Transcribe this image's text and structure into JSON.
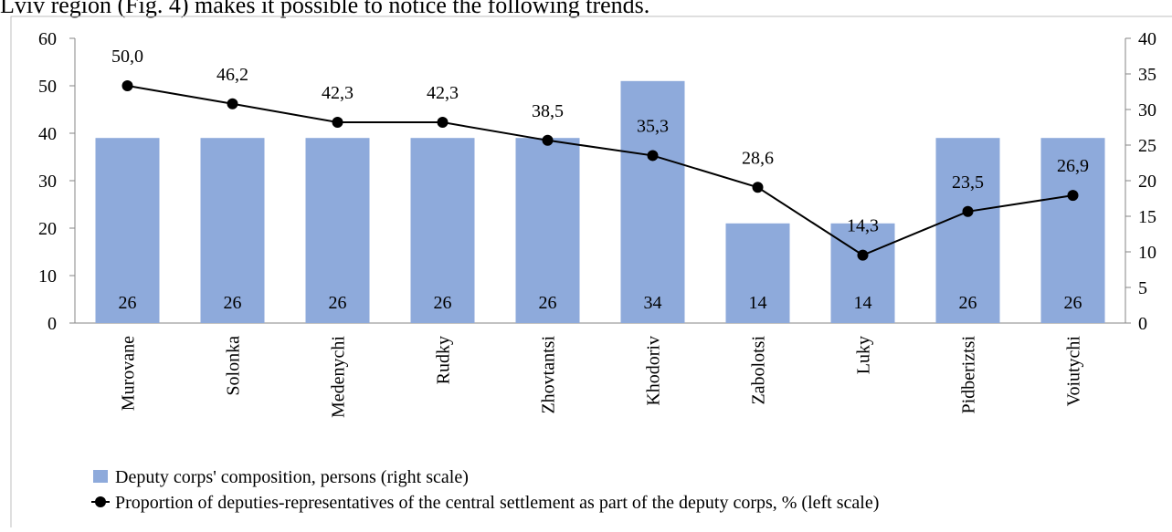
{
  "intro": "Lviv region (Fig. 4) makes it possible to notice the following trends.",
  "chart_data": {
    "type": "combo",
    "categories": [
      "Murovane",
      "Solonka",
      "Medenychi",
      "Rudky",
      "Zhovtantsi",
      "Khodoriv",
      "Zabolotsi",
      "Luky",
      "Pidberiztsi",
      "Voiutychi"
    ],
    "series": [
      {
        "name": "Deputy corps' composition, persons (right scale)",
        "type": "bar",
        "axis": "y2",
        "color": "#8eaadb",
        "values": [
          26,
          26,
          26,
          26,
          26,
          34,
          14,
          14,
          26,
          26
        ]
      },
      {
        "name": "Proportion of deputies-representatives of the central settlement as part of the deputy corps, % (left scale)",
        "type": "line",
        "axis": "y",
        "color": "#000000",
        "values": [
          50.0,
          46.2,
          42.3,
          42.3,
          38.5,
          35.3,
          28.6,
          14.3,
          23.5,
          26.9
        ],
        "value_labels": [
          "50,0",
          "46,2",
          "42,3",
          "42,3",
          "38,5",
          "35,3",
          "28,6",
          "14,3",
          "23,5",
          "26,9"
        ]
      }
    ],
    "ylim": [
      0,
      60
    ],
    "yticks": [
      0,
      10,
      20,
      30,
      40,
      50,
      60
    ],
    "y2lim": [
      0,
      40
    ],
    "y2ticks": [
      0,
      5,
      10,
      15,
      20,
      25,
      30,
      35,
      40
    ],
    "legend": "bottom"
  }
}
